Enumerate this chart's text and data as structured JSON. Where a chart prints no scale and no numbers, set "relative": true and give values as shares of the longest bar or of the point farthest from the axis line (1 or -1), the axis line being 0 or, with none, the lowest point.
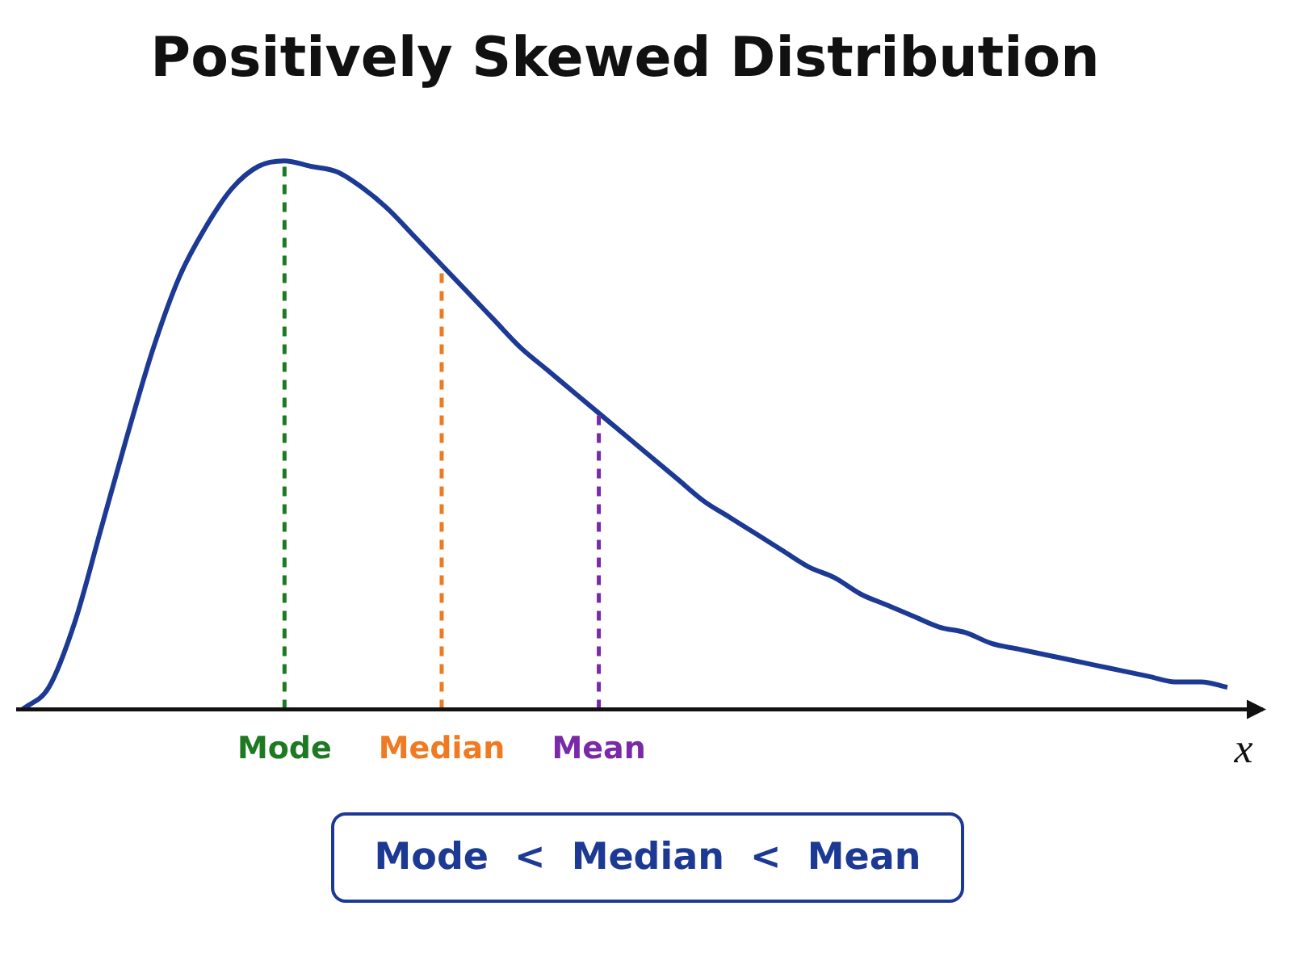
{
  "chart_data": {
    "type": "line",
    "title": "Positively Skewed Distribution",
    "xlabel": "x",
    "relative": true,
    "legend": false,
    "grid": false,
    "marker": "none",
    "tick_labels": "x",
    "categories": [
      null,
      null,
      null,
      null,
      null,
      null,
      null,
      null,
      null,
      null,
      "Mode",
      null,
      null,
      null,
      null,
      null,
      "Median",
      null,
      null,
      null,
      null,
      null,
      "Mean",
      null,
      null,
      null,
      null,
      null,
      null,
      null,
      null,
      null,
      null,
      null,
      null,
      null,
      null,
      null,
      null,
      null,
      null,
      null,
      null,
      null,
      null,
      null,
      null
    ],
    "series": [
      {
        "color": "#1c3a94",
        "values": [
          0,
          0.04,
          0.16,
          0.33,
          0.5,
          0.66,
          0.79,
          0.88,
          0.95,
          0.99,
          1,
          0.99,
          0.98,
          0.95,
          0.91,
          0.86,
          0.81,
          0.76,
          0.71,
          0.66,
          0.62,
          0.58,
          0.54,
          0.5,
          0.46,
          0.42,
          0.38,
          0.35,
          0.32,
          0.29,
          0.26,
          0.24,
          0.21,
          0.19,
          0.17,
          0.15,
          0.14,
          0.12,
          0.11,
          0.1,
          0.09,
          0.08,
          0.07,
          0.06,
          0.05,
          0.05,
          0.04
        ]
      }
    ],
    "ref_lines": [
      {
        "axis": "x",
        "value": "Mode",
        "color": "#1e7a22",
        "line_style": "dashed"
      },
      {
        "axis": "x",
        "value": "Median",
        "color": "#f07a22",
        "line_style": "dashed"
      },
      {
        "axis": "x",
        "value": "Mean",
        "color": "#7a2aa6",
        "line_style": "dashed"
      }
    ],
    "annotations": [
      "Mode  <  Median  <  Mean"
    ]
  }
}
